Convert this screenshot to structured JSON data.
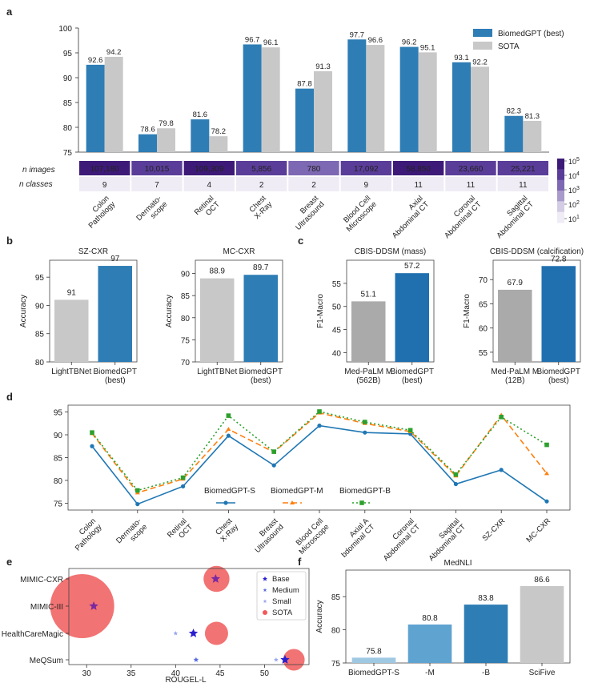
{
  "colors": {
    "biomedgpt": "#2e7db5",
    "sota": "#c8c8c8",
    "grey": "#c8c8c8",
    "base": "#1f3bd1",
    "medium": "#5a6ae0",
    "small": "#9aa6ef",
    "sotaBubble": "#f05a5a",
    "lineS": "#1f77b4",
    "lineM": "#ff7f0e",
    "lineB": "#2ca02c",
    "f0": "#9fc8e3",
    "f1": "#5fa3d1",
    "f2": "#2e7db5",
    "cbar": [
      "#3d1a78",
      "#5a3d99",
      "#7d68b3",
      "#a89bcc",
      "#d3cce4",
      "#efecf5"
    ]
  },
  "panel_labels": {
    "a": "a",
    "b": "b",
    "c": "c",
    "d": "d",
    "e": "e",
    "f": "f"
  },
  "chart_data": [
    {
      "id": "a",
      "type": "bar",
      "title": "",
      "categories": [
        "Colon\nPathology",
        "Dermato-\nscope",
        "Retinal\nOCT",
        "Chest\nX-Ray",
        "Breast\nUltrasound",
        "Blood Cell\nMicroscope",
        "Axial\nAbdominal CT",
        "Coronal\nAbdominal CT",
        "Sagittal\nAbdominal CT"
      ],
      "series": [
        {
          "name": "BiomedGPT (best)",
          "values": [
            92.6,
            78.6,
            81.6,
            96.7,
            87.8,
            97.7,
            96.2,
            93.1,
            82.3
          ]
        },
        {
          "name": "SOTA",
          "values": [
            94.2,
            79.8,
            78.2,
            96.1,
            91.3,
            96.6,
            95.1,
            92.2,
            81.3
          ]
        }
      ],
      "ylim": [
        75,
        100
      ],
      "yticks": [
        75,
        80,
        85,
        90,
        95,
        100
      ],
      "table": {
        "row_labels": [
          "n images",
          "n classes"
        ],
        "n_images": [
          107180,
          10015,
          109309,
          5856,
          780,
          17092,
          58850,
          23660,
          25221
        ],
        "n_images_text": [
          "107,180",
          "10,015",
          "109,309",
          "5,856",
          "780",
          "17,092",
          "58,850",
          "23,660",
          "25,221"
        ],
        "n_classes": [
          "9",
          "7",
          "4",
          "2",
          "2",
          "9",
          "11",
          "11",
          "11"
        ]
      },
      "colorbar": {
        "base": "10",
        "exponents": [
          "5",
          "4",
          "3",
          "2",
          "1"
        ]
      }
    },
    {
      "id": "b1",
      "type": "bar",
      "title": "SZ-CXR",
      "ylabel": "Accuracy",
      "categories": [
        "LightTBNet",
        "BiomedGPT\n(best)"
      ],
      "values": [
        91,
        97
      ],
      "ylim": [
        80,
        98
      ],
      "yticks": [
        80,
        85,
        90,
        95
      ]
    },
    {
      "id": "b2",
      "type": "bar",
      "title": "MC-CXR",
      "ylabel": "Accuracy",
      "categories": [
        "LightTBNet",
        "BiomedGPT\n(best)"
      ],
      "values": [
        88.9,
        89.7
      ],
      "ylim": [
        70,
        93
      ],
      "yticks": [
        70,
        75,
        80,
        85,
        90
      ]
    },
    {
      "id": "c1",
      "type": "bar",
      "title": "CBIS-DDSM (mass)",
      "ylabel": "F1-Macro",
      "categories": [
        "Med-PaLM M\n(562B)",
        "BiomedGPT\n(best)"
      ],
      "values": [
        51.1,
        57.2
      ],
      "ylim": [
        38,
        60
      ],
      "yticks": [
        40,
        45,
        50,
        55
      ]
    },
    {
      "id": "c2",
      "type": "bar",
      "title": "CBIS-DDSM (calcification)",
      "ylabel": "F1-Macro",
      "categories": [
        "Med-PaLM M\n(12B)",
        "BiomedGPT\n(best)"
      ],
      "values": [
        67.9,
        72.8
      ],
      "ylim": [
        53,
        74
      ],
      "yticks": [
        55,
        60,
        65,
        70
      ]
    },
    {
      "id": "d",
      "type": "line",
      "categories": [
        "Colon\nPathology",
        "Dermato-\nscope",
        "Retinal\nOCT",
        "Chest\nX-Ray",
        "Breast\nUltrasound",
        "Blood Cell\nMicroscope",
        "Axial A\nbdominal CT",
        "Coronal\nAbdominal CT",
        "Sagittal\nAbdominal CT",
        "SZ-CXR",
        "MC-CXR"
      ],
      "series": [
        {
          "name": "BiomedGPT-S",
          "values": [
            87.5,
            74.8,
            78.7,
            89.8,
            83.3,
            92.0,
            90.5,
            90.2,
            79.2,
            82.3,
            75.4
          ]
        },
        {
          "name": "BiomedGPT-M",
          "values": [
            90.3,
            77.3,
            80.3,
            91.2,
            86.2,
            94.8,
            92.5,
            90.7,
            81.0,
            94.3,
            81.5
          ]
        },
        {
          "name": "BiomedGPT-B",
          "values": [
            90.5,
            77.8,
            80.6,
            94.2,
            86.3,
            95.1,
            92.8,
            91.0,
            81.3,
            93.9,
            87.8
          ]
        }
      ],
      "ylim": [
        73.5,
        96.5
      ],
      "yticks": [
        75,
        80,
        85,
        90,
        95
      ]
    },
    {
      "id": "e",
      "type": "scatter",
      "xlabel": "ROUGEL-L",
      "datasets": [
        "MIMIC-CXR",
        "MIMIC-III",
        "HealthCareMagic",
        "MeQSum"
      ],
      "xlim": [
        28,
        55
      ],
      "xticks": [
        30,
        35,
        40,
        45,
        50
      ],
      "legend": [
        "Base",
        "Medium",
        "Small",
        "SOTA"
      ],
      "points": [
        {
          "dataset": "MIMIC-CXR",
          "model": "Base",
          "x": 44.5
        },
        {
          "dataset": "MIMIC-CXR",
          "model": "SOTA",
          "x": 44.6,
          "size": 0.3
        },
        {
          "dataset": "MIMIC-III",
          "model": "Base",
          "x": 30.8
        },
        {
          "dataset": "MIMIC-III",
          "model": "SOTA",
          "x": 29.5,
          "size": 1.0
        },
        {
          "dataset": "HealthCareMagic",
          "model": "Small",
          "x": 40.0
        },
        {
          "dataset": "HealthCareMagic",
          "model": "Base",
          "x": 42.0
        },
        {
          "dataset": "HealthCareMagic",
          "model": "SOTA",
          "x": 44.6,
          "size": 0.25
        },
        {
          "dataset": "MeQSum",
          "model": "Medium",
          "x": 42.3
        },
        {
          "dataset": "MeQSum",
          "model": "Small",
          "x": 51.3
        },
        {
          "dataset": "MeQSum",
          "model": "Base",
          "x": 52.3
        },
        {
          "dataset": "MeQSum",
          "model": "SOTA",
          "x": 53.3,
          "size": 0.22
        }
      ]
    },
    {
      "id": "f",
      "type": "bar",
      "title": "MedNLI",
      "ylabel": "Accuracy",
      "categories": [
        "BiomedGPT-S",
        "-M",
        "-B",
        "SciFive"
      ],
      "values": [
        75.8,
        80.8,
        83.8,
        86.6
      ],
      "ylim": [
        75,
        89
      ],
      "yticks": [
        75,
        80,
        85
      ]
    }
  ]
}
